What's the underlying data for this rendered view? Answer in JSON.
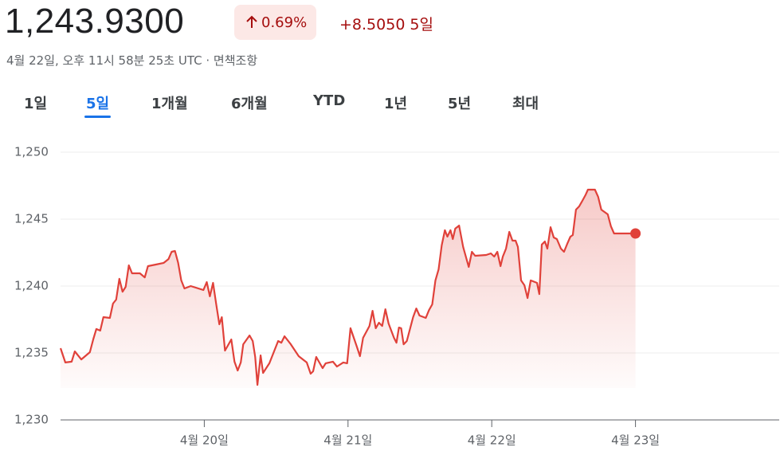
{
  "header": {
    "price": "1,243.9300",
    "change_percent": "0.69%",
    "change": "+8.5050",
    "period": "5일",
    "timestamp": "4월 22일, 오후 11시 58분 25초 UTC",
    "disclaimer": "면책조항"
  },
  "tabs": [
    "1일",
    "5일",
    "1개월",
    "6개월",
    "YTD",
    "1년",
    "5년",
    "최대"
  ],
  "selected_tab": 1,
  "chart_data": {
    "type": "line",
    "color": "#e0413a",
    "grid": true,
    "xlim": [
      19,
      24
    ],
    "xticks": [
      {
        "value": 20,
        "label": "4월 20일"
      },
      {
        "value": 21,
        "label": "4월 21일"
      },
      {
        "value": 22,
        "label": "4월 22일"
      },
      {
        "value": 23,
        "label": "4월 23일"
      }
    ],
    "ylim": [
      1230,
      1250
    ],
    "yticks": [
      {
        "value": 1230,
        "label": "1,230"
      },
      {
        "value": 1235,
        "label": "1,235"
      },
      {
        "value": 1240,
        "label": "1,240"
      },
      {
        "value": 1245,
        "label": "1,245"
      },
      {
        "value": 1250,
        "label": "1,250"
      }
    ],
    "x": [
      19.0,
      19.033,
      19.077,
      19.099,
      19.144,
      19.204,
      19.227,
      19.249,
      19.276,
      19.298,
      19.343,
      19.365,
      19.387,
      19.409,
      19.431,
      19.453,
      19.475,
      19.497,
      19.552,
      19.586,
      19.608,
      19.663,
      19.718,
      19.751,
      19.773,
      19.796,
      19.818,
      19.84,
      19.862,
      19.906,
      19.994,
      20.017,
      20.039,
      20.061,
      20.083,
      20.105,
      20.122,
      20.144,
      20.188,
      20.21,
      20.232,
      20.254,
      20.271,
      20.315,
      20.337,
      20.354,
      20.37,
      20.392,
      20.409,
      20.453,
      20.514,
      20.536,
      20.558,
      20.602,
      20.657,
      20.713,
      20.74,
      20.757,
      20.779,
      20.823,
      20.845,
      20.895,
      20.923,
      20.967,
      20.994,
      21.017,
      21.061,
      21.083,
      21.105,
      21.149,
      21.171,
      21.193,
      21.215,
      21.238,
      21.26,
      21.282,
      21.32,
      21.337,
      21.354,
      21.37,
      21.387,
      21.409,
      21.453,
      21.475,
      21.497,
      21.541,
      21.564,
      21.586,
      21.608,
      21.63,
      21.652,
      21.674,
      21.691,
      21.713,
      21.729,
      21.746,
      21.773,
      21.801,
      21.84,
      21.862,
      21.884,
      21.961,
      21.994,
      22.017,
      22.039,
      22.061,
      22.077,
      22.099,
      22.122,
      22.144,
      22.166,
      22.182,
      22.204,
      22.227,
      22.249,
      22.271,
      22.315,
      22.331,
      22.348,
      22.37,
      22.387,
      22.409,
      22.431,
      22.453,
      22.481,
      22.503,
      22.525,
      22.547,
      22.564,
      22.586,
      22.608,
      22.63,
      22.652,
      22.669,
      22.718,
      22.74,
      22.762,
      22.807,
      22.829,
      22.851,
      22.934,
      23.0
    ],
    "values": [
      1235.36,
      1234.29,
      1234.35,
      1235.12,
      1234.52,
      1235.06,
      1236.01,
      1236.79,
      1236.67,
      1237.68,
      1237.62,
      1238.69,
      1238.99,
      1240.54,
      1239.58,
      1239.94,
      1241.55,
      1240.95,
      1240.95,
      1240.65,
      1241.49,
      1241.61,
      1241.73,
      1242.02,
      1242.56,
      1242.62,
      1241.73,
      1240.42,
      1239.82,
      1240.0,
      1239.7,
      1240.3,
      1239.23,
      1240.24,
      1238.63,
      1237.14,
      1237.68,
      1235.18,
      1236.01,
      1234.35,
      1233.69,
      1234.29,
      1235.65,
      1236.31,
      1235.89,
      1234.7,
      1232.62,
      1234.82,
      1233.51,
      1234.23,
      1235.89,
      1235.77,
      1236.25,
      1235.65,
      1234.76,
      1234.29,
      1233.45,
      1233.63,
      1234.7,
      1233.87,
      1234.23,
      1234.35,
      1233.99,
      1234.29,
      1234.23,
      1236.85,
      1235.48,
      1234.76,
      1236.13,
      1237.02,
      1238.15,
      1236.85,
      1237.26,
      1237.02,
      1238.27,
      1237.2,
      1236.13,
      1235.77,
      1236.9,
      1236.85,
      1235.65,
      1235.89,
      1237.68,
      1238.33,
      1237.8,
      1237.62,
      1238.21,
      1238.63,
      1240.42,
      1241.25,
      1243.04,
      1244.17,
      1243.69,
      1244.17,
      1243.51,
      1244.29,
      1244.52,
      1242.92,
      1241.43,
      1242.56,
      1242.26,
      1242.32,
      1242.44,
      1242.2,
      1242.56,
      1241.49,
      1242.2,
      1242.8,
      1244.05,
      1243.39,
      1243.39,
      1242.92,
      1240.42,
      1240.06,
      1239.11,
      1240.42,
      1240.24,
      1239.4,
      1243.1,
      1243.33,
      1242.8,
      1244.4,
      1243.63,
      1243.51,
      1242.8,
      1242.56,
      1243.15,
      1243.69,
      1243.81,
      1245.71,
      1245.95,
      1246.37,
      1246.79,
      1247.2,
      1247.2,
      1246.67,
      1245.71,
      1245.36,
      1244.46,
      1243.93,
      1243.93,
      1243.93
    ]
  }
}
